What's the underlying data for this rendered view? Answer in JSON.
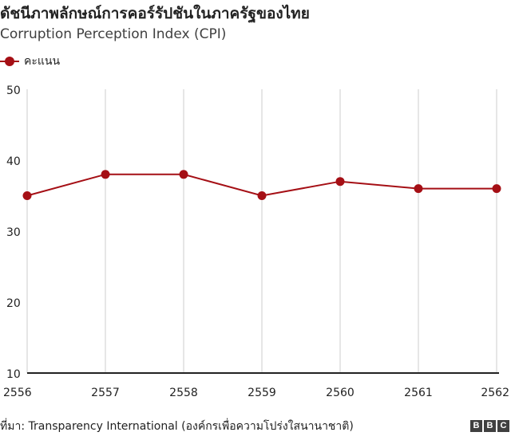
{
  "title": "ดัชนีภาพลักษณ์การคอร์รัปชันในภาครัฐของไทย",
  "subtitle": "Corruption Perception Index (CPI)",
  "source": "ที่มา: Transparency International (องค์กรเพื่อความโปร่งใสนานาชาติ)",
  "logo": {
    "letters": [
      "B",
      "B",
      "C"
    ]
  },
  "colors": {
    "series": "#a50f15",
    "grid": "#cccccc",
    "axis": "#222222",
    "text": "#222222"
  },
  "chart_data": {
    "type": "line",
    "x": [
      "2556",
      "2557",
      "2558",
      "2559",
      "2560",
      "2561",
      "2562"
    ],
    "series": [
      {
        "name": "คะแนน",
        "values": [
          35,
          38,
          38,
          35,
          37,
          36,
          36
        ]
      }
    ],
    "ylim": [
      10,
      50
    ],
    "yticks": [
      10,
      20,
      30,
      40,
      50
    ],
    "grid": "vertical",
    "legend": "top-left"
  }
}
